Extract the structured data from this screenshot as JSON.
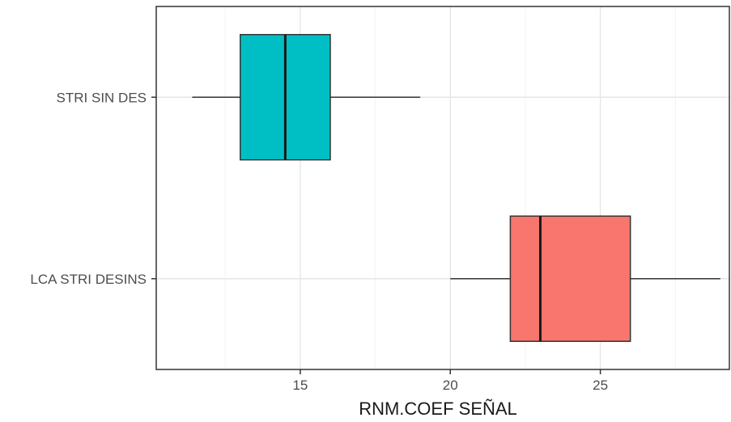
{
  "chart_data": {
    "type": "boxplot",
    "orientation": "horizontal",
    "title": "",
    "xlabel": "RNM.COEF SEÑAL",
    "ylabel": "",
    "xlim": [
      10.2,
      29.3
    ],
    "x_ticks": [
      15,
      20,
      25
    ],
    "grid": true,
    "legend": "none",
    "categories": [
      "STRI SIN DES",
      "LCA STRI DESINS"
    ],
    "boxes": [
      {
        "category": "STRI SIN DES",
        "whisker_low": 11.4,
        "q1": 13.0,
        "median": 14.5,
        "q3": 16.0,
        "whisker_high": 19.0,
        "color": "#00BFC4"
      },
      {
        "category": "LCA STRI DESINS",
        "whisker_low": 20.0,
        "q1": 22.0,
        "median": 23.0,
        "q3": 26.0,
        "whisker_high": 29.0,
        "color": "#F8766D"
      }
    ]
  }
}
